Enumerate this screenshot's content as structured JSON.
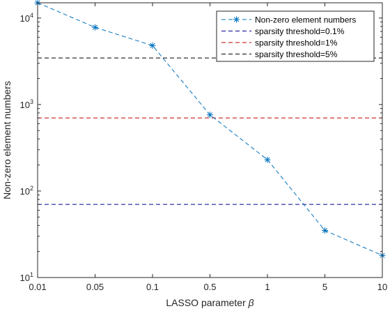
{
  "chart_data": {
    "type": "line",
    "xlabel": "LASSO parameter",
    "xlabel_symbol": "β",
    "ylabel": "Non-zero element numbers",
    "x_categories": [
      "0.01",
      "0.05",
      "0.1",
      "0.5",
      "1",
      "5",
      "10"
    ],
    "y_scale": "log",
    "ylim": [
      10,
      15000
    ],
    "y_ticks": [
      {
        "value": 10,
        "base": "10",
        "exp": "1"
      },
      {
        "value": 100,
        "base": "10",
        "exp": "2"
      },
      {
        "value": 1000,
        "base": "10",
        "exp": "3"
      },
      {
        "value": 10000,
        "base": "10",
        "exp": "4"
      }
    ],
    "grid": false,
    "legend_position": "top-right",
    "series": [
      {
        "name": "Non-zero element numbers",
        "color": "#0072BD",
        "marker": "asterisk",
        "line_style": "dashed",
        "values": [
          15000,
          7800,
          4800,
          760,
          230,
          35,
          18
        ]
      }
    ],
    "thresholds": [
      {
        "name": "sparsity threshold=0.1%",
        "value": 70,
        "color": "#00008B"
      },
      {
        "name": "sparsity threshold=1%",
        "value": 700,
        "color": "#C00000"
      },
      {
        "name": "sparsity threshold=5%",
        "value": 3450,
        "color": "#000000"
      }
    ]
  }
}
